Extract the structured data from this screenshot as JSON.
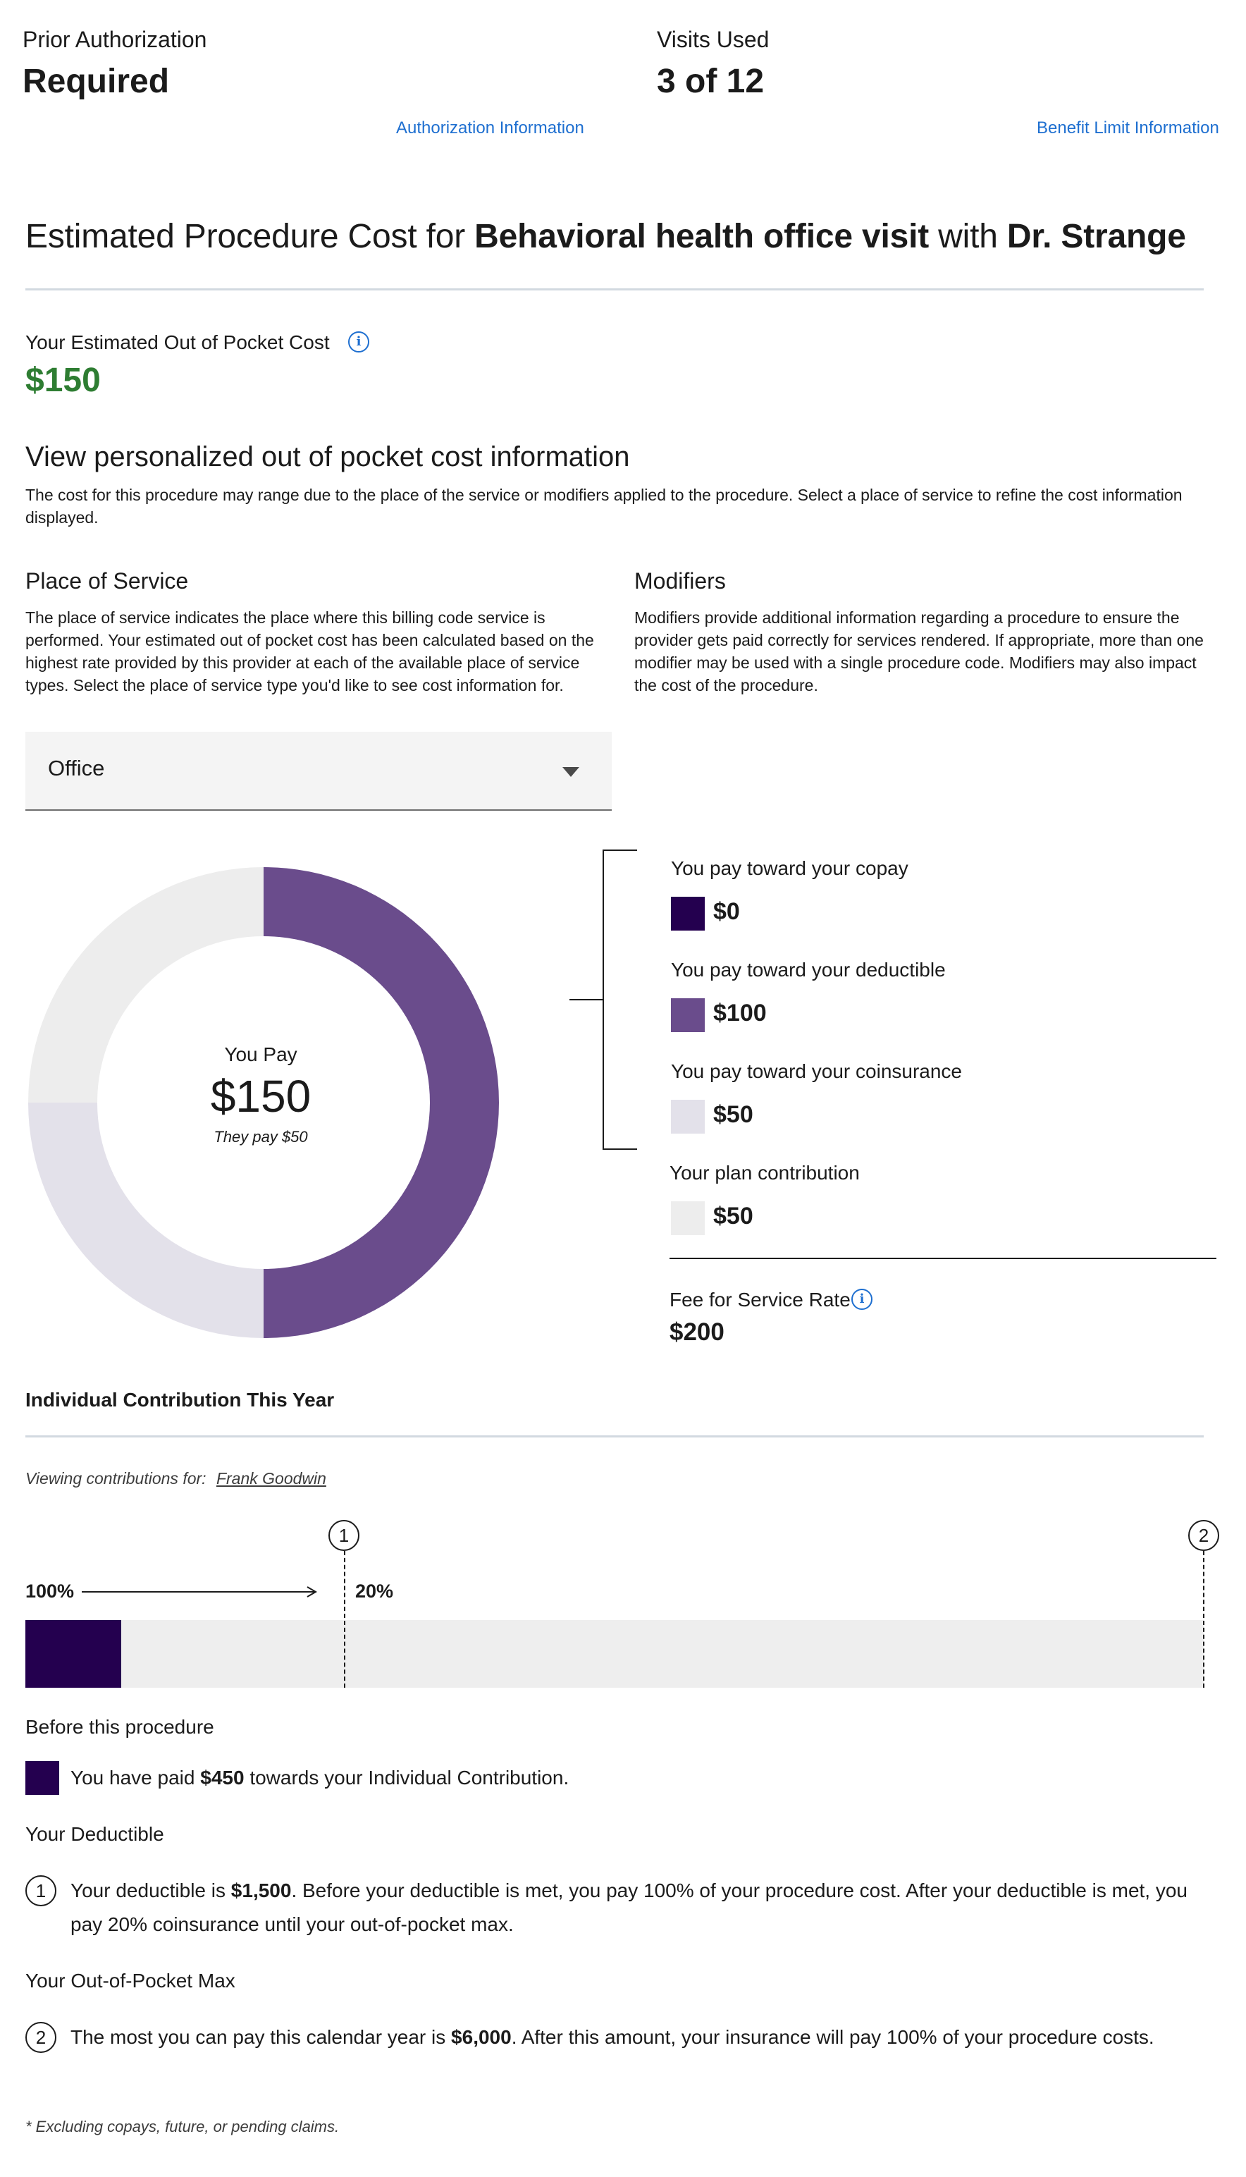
{
  "cards": {
    "prior_auth_label": "Prior Authorization",
    "prior_auth_value": "Required",
    "prior_auth_link": "Authorization Information",
    "visits_label": "Visits Used",
    "visits_value": "3 of 12",
    "visits_link": "Benefit Limit Information"
  },
  "title": {
    "prefix": "Estimated Procedure Cost for ",
    "procedure": "Behavioral health office visit",
    "middle": " with ",
    "provider": "Dr. Strange"
  },
  "estimate": {
    "label": "Your Estimated Out of Pocket Cost",
    "value": "$150",
    "info_icon": "info-icon"
  },
  "personalized": {
    "heading": "View personalized out of pocket cost information",
    "text": "The cost for this procedure may range due to the place of the service or modifiers applied to the procedure. Select a place of service to refine the cost information displayed."
  },
  "place_of_service": {
    "heading": "Place of Service",
    "text": "The place of service indicates the place where this billing code service is performed. Your estimated out of pocket cost has been calculated based on the highest rate provided by this provider at each of the available place of service types. Select the place of service type you'd like to see cost information for.",
    "selected": "Office"
  },
  "modifiers": {
    "heading": "Modifiers",
    "text": "Modifiers provide additional information regarding a procedure to ensure the provider gets paid correctly for services rendered. If appropriate, more than one modifier may be used with a single procedure code. Modifiers may also impact the cost of the procedure."
  },
  "donut": {
    "center_label": "You Pay",
    "center_value": "$150",
    "center_sub": "They pay $50"
  },
  "chart_data": {
    "type": "pie",
    "donut": true,
    "total": 200,
    "segments": [
      {
        "label": "You pay toward your copay",
        "value": 0,
        "display": "$0",
        "color": "#24004f"
      },
      {
        "label": "You pay toward your deductible",
        "value": 100,
        "display": "$100",
        "color": "#6a4c8c"
      },
      {
        "label": "You pay toward your coinsurance",
        "value": 50,
        "display": "$50",
        "color": "#e3e1ea"
      },
      {
        "label": "Your plan contribution",
        "value": 50,
        "display": "$50",
        "color": "#ededed"
      }
    ]
  },
  "fee": {
    "label": "Fee for Service Rate",
    "value": "$200",
    "info_icon": "info-icon"
  },
  "contribution": {
    "heading": "Individual Contribution This Year",
    "viewing_label": "Viewing contributions for:",
    "member": "Frank Goodwin",
    "pct_before": "100%",
    "pct_after": "20%",
    "marker1": "1",
    "marker2": "2",
    "paid_amount": 450,
    "deductible_amount": 1500,
    "oop_max_amount": 6000,
    "bar_colors": {
      "paid": "#24004f",
      "track": "#eeeeee"
    },
    "before_heading": "Before this procedure",
    "paid_pre": "You have paid ",
    "paid_value": "$450",
    "paid_post": " towards your Individual Contribution.",
    "deductible_heading": "Your Deductible",
    "deductible_pre": "Your deductible is ",
    "deductible_value": "$1,500",
    "deductible_post": ". Before your deductible is met, you pay 100% of your procedure cost. After your deductible is met, you pay 20% coinsurance until your out-of-pocket max.",
    "oop_heading": "Your Out-of-Pocket Max",
    "oop_pre": "The most you can pay this calendar year is ",
    "oop_value": "$6,000",
    "oop_post": ". After this amount, your insurance will pay 100% of your procedure costs.",
    "footnote": "* Excluding copays, future, or pending claims."
  }
}
